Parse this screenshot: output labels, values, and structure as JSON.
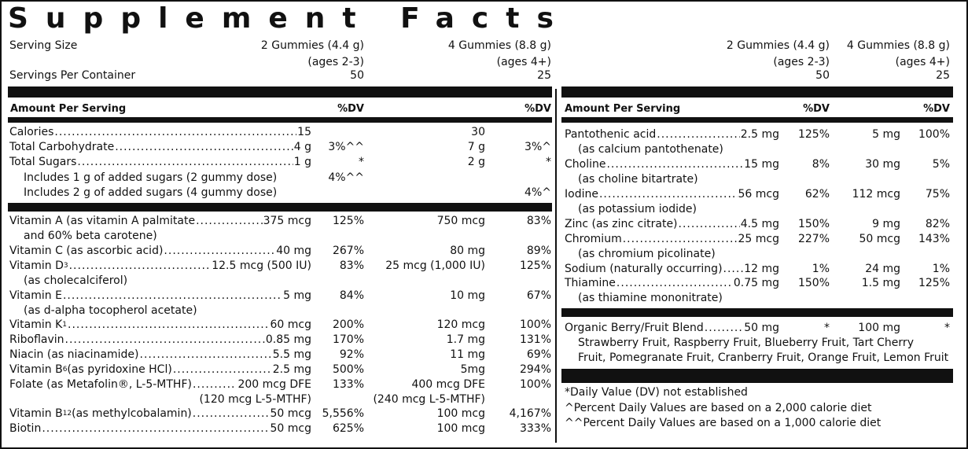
{
  "title": "Supplement Facts",
  "header": {
    "serving_size_label": "Serving Size",
    "servings_per_container_label": "Servings Per Container",
    "col1_size": "2 Gummies (4.4 g)",
    "col1_ages": "(ages 2-3)",
    "col1_servings": "50",
    "col2_size": "4 Gummies (8.8 g)",
    "col2_ages": "(ages 4+)",
    "col2_servings": "25"
  },
  "amount_per_serving": "Amount Per Serving",
  "dv": "%DV",
  "macros": [
    {
      "name": "Calories",
      "amt1": "15",
      "dv1": "",
      "amt2": "30",
      "dv2": ""
    },
    {
      "name": "Total Carbohydrate",
      "amt1": "4 g",
      "dv1": "3%^^",
      "amt2": "7 g",
      "dv2": "3%^"
    },
    {
      "name": "Total Sugars",
      "amt1": "1 g",
      "dv1": "*",
      "amt2": "2 g",
      "dv2": "*"
    }
  ],
  "added_sugars_1": {
    "text": "Includes 1 g of added sugars (2 gummy dose)",
    "dv": "4%^^"
  },
  "added_sugars_2": {
    "text": "Includes 2 g of added sugars (4 gummy dose)",
    "dv": "4%^"
  },
  "vitamins": [
    {
      "name": "Vitamin A (as vitamin A palmitate",
      "amt1": "375 mcg",
      "dv1": "125%",
      "amt2": "750 mcg",
      "dv2": "83%",
      "sub": "and 60% beta carotene)"
    },
    {
      "name": "Vitamin C (as ascorbic acid)",
      "amt1": "40 mg",
      "dv1": "267%",
      "amt2": "80 mg",
      "dv2": "89%",
      "sub": ""
    },
    {
      "name": "Vitamin D",
      "subscript": "3",
      "amt1": "12.5 mcg (500 IU)",
      "dv1": "83%",
      "amt2": "25 mcg (1,000 IU)",
      "dv2": "125%",
      "sub": "(as cholecalciferol)"
    },
    {
      "name": "Vitamin E",
      "amt1": "5 mg",
      "dv1": "84%",
      "amt2": "10 mg",
      "dv2": "67%",
      "sub": "(as d-alpha tocopherol acetate)"
    },
    {
      "name": "Vitamin K",
      "subscript": "1",
      "amt1": "60 mcg",
      "dv1": "200%",
      "amt2": "120 mcg",
      "dv2": "100%",
      "sub": ""
    },
    {
      "name": "Riboflavin",
      "amt1": "0.85 mg",
      "dv1": "170%",
      "amt2": "1.7 mg",
      "dv2": "131%",
      "sub": ""
    },
    {
      "name": "Niacin (as niacinamide)",
      "amt1": "5.5 mg",
      "dv1": "92%",
      "amt2": "11 mg",
      "dv2": "69%",
      "sub": ""
    },
    {
      "name": "Vitamin B",
      "subscript": "6",
      "suffix": " (as pyridoxine HCl)",
      "amt1": "2.5 mg",
      "dv1": "500%",
      "amt2": "5mg",
      "dv2": "294%",
      "sub": ""
    },
    {
      "name": "Folate (as Metafolin®, L-5-MTHF)",
      "amt1": "200 mcg DFE",
      "dv1": "133%",
      "amt2": "400 mcg DFE",
      "dv2": "100%",
      "sub1": "(120 mcg L-5-MTHF)",
      "sub2": "(240 mcg L-5-MTHF)"
    },
    {
      "name": "Vitamin B",
      "subscript": "12",
      "suffix": " (as methylcobalamin)",
      "amt1": "50 mcg",
      "dv1": "5,556%",
      "amt2": "100 mcg",
      "dv2": "4,167%",
      "sub": ""
    },
    {
      "name": "Biotin",
      "amt1": "50 mcg",
      "dv1": "625%",
      "amt2": "100 mcg",
      "dv2": "333%",
      "sub": ""
    }
  ],
  "minerals": [
    {
      "name": "Pantothenic acid",
      "amt1": "2.5 mg",
      "dv1": "125%",
      "amt2": "5 mg",
      "dv2": "100%",
      "sub": "(as calcium pantothenate)"
    },
    {
      "name": "Choline",
      "amt1": "15 mg",
      "dv1": "8%",
      "amt2": "30 mg",
      "dv2": "5%",
      "sub": "(as choline bitartrate)"
    },
    {
      "name": "Iodine",
      "amt1": "56 mcg",
      "dv1": "62%",
      "amt2": "112 mcg",
      "dv2": "75%",
      "sub": "(as potassium iodide)"
    },
    {
      "name": "Zinc (as zinc citrate)",
      "amt1": "4.5 mg",
      "dv1": "150%",
      "amt2": "9 mg",
      "dv2": "82%",
      "sub": ""
    },
    {
      "name": "Chromium",
      "amt1": "25 mcg",
      "dv1": "227%",
      "amt2": "50 mcg",
      "dv2": "143%",
      "sub": "(as chromium picolinate)"
    },
    {
      "name": "Sodium (naturally occurring)",
      "amt1": "12 mg",
      "dv1": "1%",
      "amt2": "24 mg",
      "dv2": "1%",
      "sub": ""
    },
    {
      "name": "Thiamine",
      "amt1": "0.75 mg",
      "dv1": "150%",
      "amt2": "1.5 mg",
      "dv2": "125%",
      "sub": "(as thiamine mononitrate)"
    }
  ],
  "blend": {
    "name": "Organic Berry/Fruit Blend",
    "amt1": "50 mg",
    "dv1": "*",
    "amt2": "100 mg",
    "dv2": "*",
    "line1": "Strawberry Fruit, Raspberry Fruit, Blueberry Fruit, Tart Cherry",
    "line2": "Fruit, Pomegranate Fruit, Cranberry Fruit, Orange Fruit, Lemon Fruit"
  },
  "footnotes": [
    "*Daily Value (DV) not established",
    "^Percent Daily Values are based on a 2,000 calorie diet",
    "^^Percent Daily Values are based on a 1,000 calorie diet"
  ]
}
